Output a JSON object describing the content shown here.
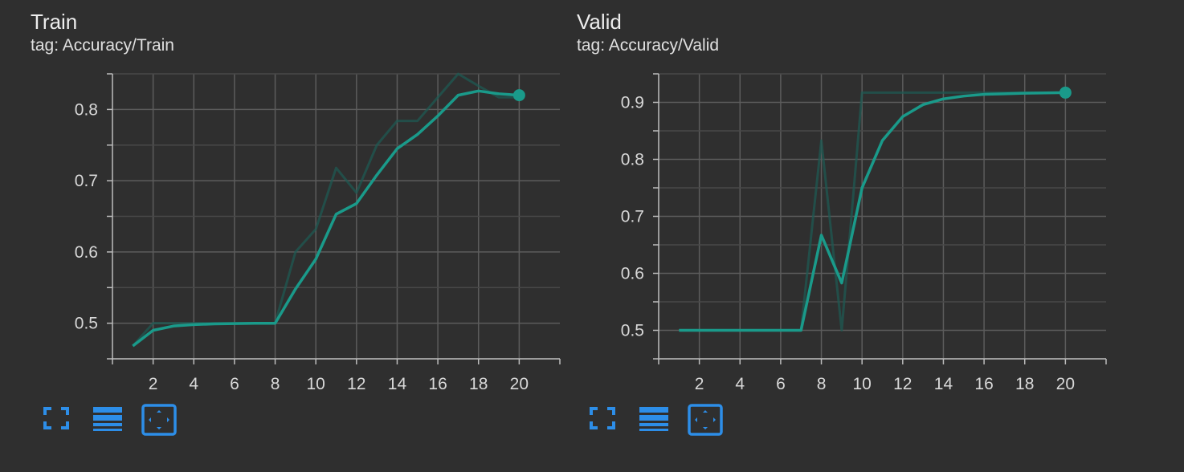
{
  "accent_color": "#1a9a8a",
  "faint_color": "#1f5a53",
  "toolbar_color": "#2d8ee8",
  "toolbar": {
    "icons": [
      "fullscreen-icon",
      "data-table-icon",
      "fit-domain-icon"
    ]
  },
  "chart_data": [
    {
      "type": "line",
      "title": "Train",
      "subtitle": "tag: Accuracy/Train",
      "xlabel": "",
      "ylabel": "",
      "xlim": [
        0,
        22
      ],
      "ylim": [
        0.45,
        0.85
      ],
      "xticks": [
        2,
        4,
        6,
        8,
        10,
        12,
        14,
        16,
        18,
        20
      ],
      "yticks": [
        0.5,
        0.6,
        0.7,
        0.8
      ],
      "grid": true,
      "series": [
        {
          "role": "raw",
          "x": [
            1,
            2,
            3,
            4,
            5,
            6,
            7,
            8,
            9,
            10,
            11,
            12,
            13,
            14,
            15,
            16,
            17,
            18,
            19,
            20
          ],
          "values": [
            0.468,
            0.5,
            0.5,
            0.5,
            0.5,
            0.5,
            0.5,
            0.5,
            0.6,
            0.632,
            0.718,
            0.683,
            0.75,
            0.784,
            0.784,
            0.817,
            0.85,
            0.833,
            0.817,
            0.817
          ]
        },
        {
          "role": "smoothed",
          "x": [
            1,
            2,
            3,
            4,
            5,
            6,
            7,
            8,
            9,
            10,
            11,
            12,
            13,
            14,
            15,
            16,
            17,
            18,
            19,
            20
          ],
          "values": [
            0.468,
            0.49,
            0.496,
            0.498,
            0.499,
            0.4995,
            0.4998,
            0.4999,
            0.548,
            0.59,
            0.653,
            0.668,
            0.708,
            0.745,
            0.765,
            0.791,
            0.82,
            0.826,
            0.822,
            0.82
          ]
        }
      ]
    },
    {
      "type": "line",
      "title": "Valid",
      "subtitle": "tag: Accuracy/Valid",
      "xlabel": "",
      "ylabel": "",
      "xlim": [
        0,
        22
      ],
      "ylim": [
        0.45,
        0.95
      ],
      "xticks": [
        2,
        4,
        6,
        8,
        10,
        12,
        14,
        16,
        18,
        20
      ],
      "yticks": [
        0.5,
        0.6,
        0.7,
        0.8,
        0.9
      ],
      "grid": true,
      "series": [
        {
          "role": "raw",
          "x": [
            1,
            2,
            3,
            4,
            5,
            6,
            7,
            8,
            9,
            10,
            11,
            12,
            13,
            14,
            15,
            16,
            17,
            18,
            19,
            20
          ],
          "values": [
            0.5,
            0.5,
            0.5,
            0.5,
            0.5,
            0.5,
            0.5,
            0.833,
            0.5,
            0.917,
            0.917,
            0.917,
            0.917,
            0.917,
            0.917,
            0.917,
            0.917,
            0.917,
            0.917,
            0.917
          ]
        },
        {
          "role": "smoothed",
          "x": [
            1,
            2,
            3,
            4,
            5,
            6,
            7,
            8,
            9,
            10,
            11,
            12,
            13,
            14,
            15,
            16,
            17,
            18,
            19,
            20
          ],
          "values": [
            0.5,
            0.5,
            0.5,
            0.5,
            0.5,
            0.5,
            0.5,
            0.667,
            0.583,
            0.75,
            0.833,
            0.875,
            0.896,
            0.906,
            0.911,
            0.914,
            0.915,
            0.916,
            0.9165,
            0.917
          ]
        }
      ]
    }
  ]
}
